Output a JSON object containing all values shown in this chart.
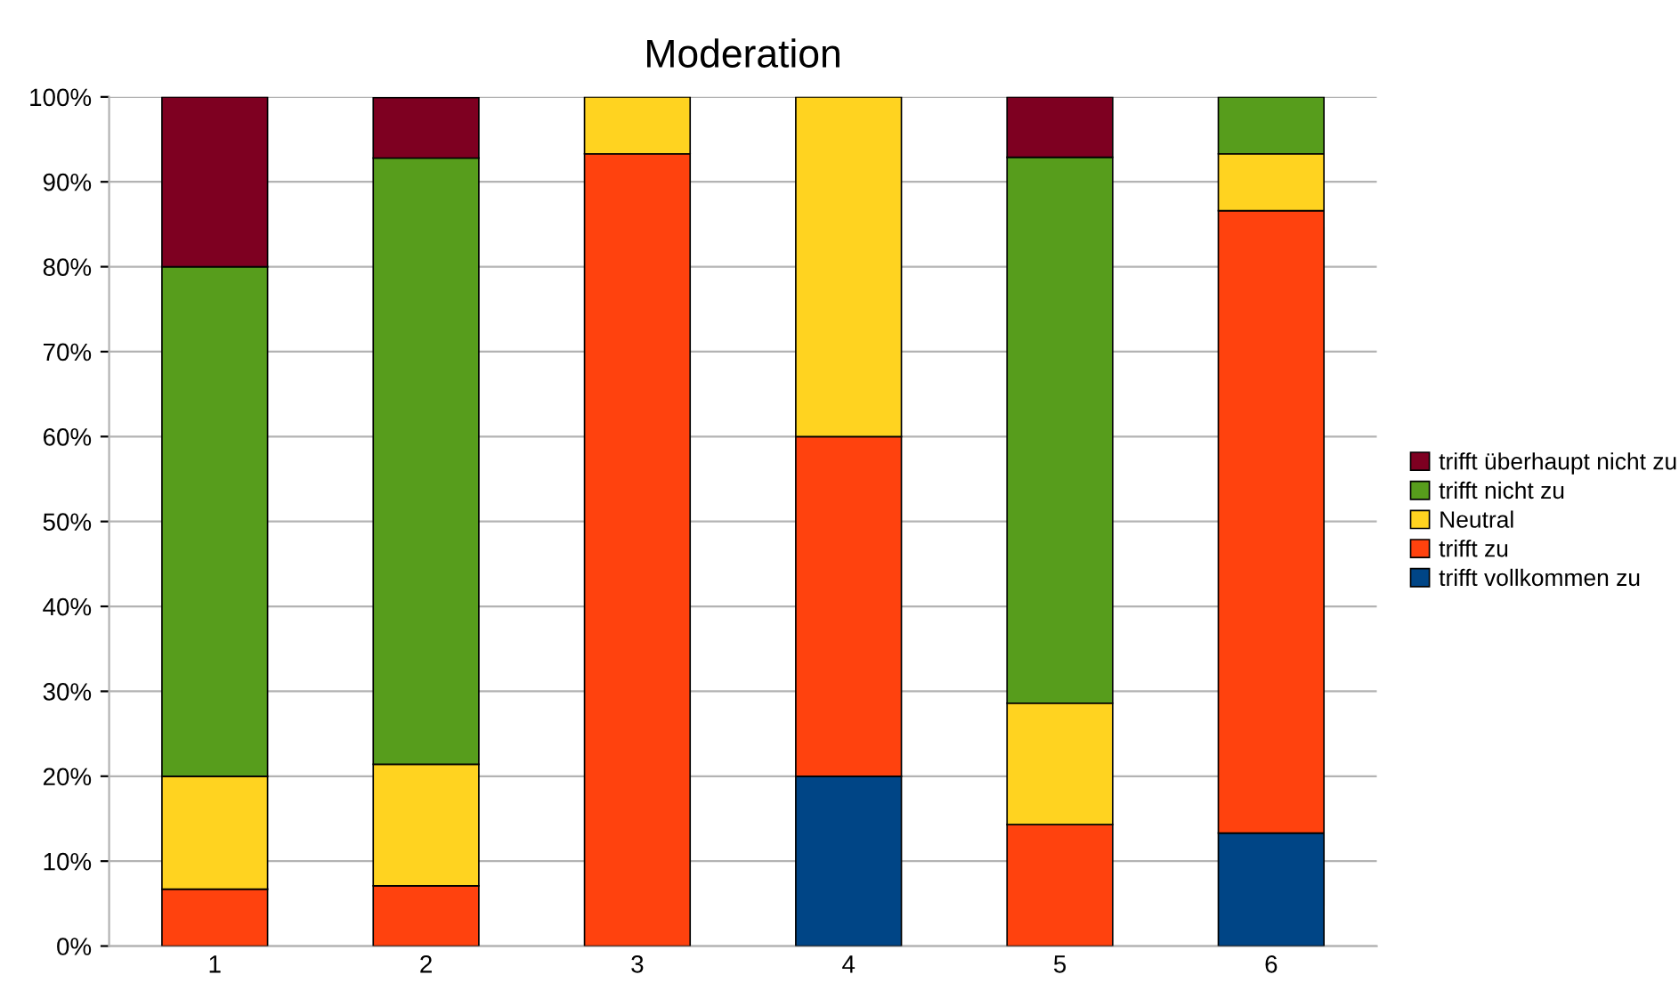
{
  "chart_data": {
    "type": "bar",
    "title": "Moderation",
    "stacked": true,
    "categories": [
      "1",
      "2",
      "3",
      "4",
      "5",
      "6"
    ],
    "series": [
      {
        "name": "trifft vollkommen zu",
        "color": "#004586",
        "values": [
          0,
          0,
          0,
          20,
          0,
          13.3
        ]
      },
      {
        "name": "trifft zu",
        "color": "#ff420e",
        "values": [
          6.7,
          7.1,
          93.3,
          40,
          14.3,
          73.3
        ]
      },
      {
        "name": "Neutral",
        "color": "#ffd320",
        "values": [
          13.3,
          14.3,
          6.7,
          40,
          14.3,
          6.7
        ]
      },
      {
        "name": "trifft nicht zu",
        "color": "#579d1c",
        "values": [
          60,
          71.4,
          0,
          0,
          64.3,
          6.7
        ]
      },
      {
        "name": "trifft überhaupt nicht zu",
        "color": "#7e0021",
        "values": [
          20,
          7.1,
          0,
          0,
          7.1,
          0
        ]
      }
    ],
    "ylim": [
      0,
      100
    ],
    "yticks": [
      {
        "value": 0,
        "label": "0%"
      },
      {
        "value": 10,
        "label": "10%"
      },
      {
        "value": 20,
        "label": "20%"
      },
      {
        "value": 30,
        "label": "30%"
      },
      {
        "value": 40,
        "label": "40%"
      },
      {
        "value": 50,
        "label": "50%"
      },
      {
        "value": 60,
        "label": "60%"
      },
      {
        "value": 70,
        "label": "70%"
      },
      {
        "value": 80,
        "label": "80%"
      },
      {
        "value": 90,
        "label": "90%"
      },
      {
        "value": 100,
        "label": "100%"
      }
    ],
    "grid": "y",
    "legend": "right"
  }
}
